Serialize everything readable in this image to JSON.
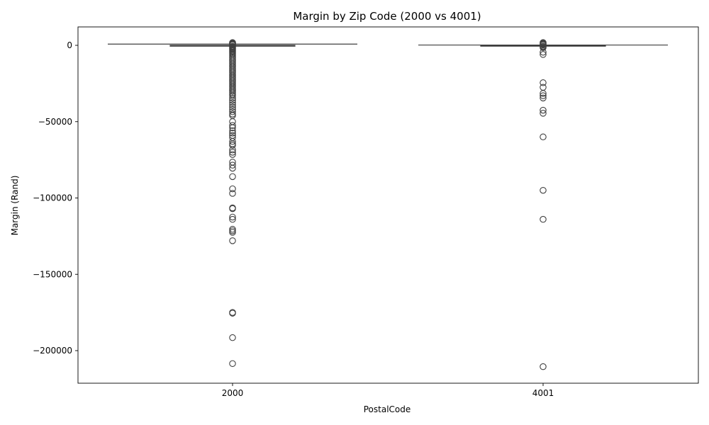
{
  "chart_data": {
    "type": "box",
    "title": "Margin by Zip Code (2000 vs 4001)",
    "xlabel": "PostalCode",
    "ylabel": "Margin (Rand)",
    "categories": [
      "2000",
      "4001"
    ],
    "ylim": [
      -220000,
      12000
    ],
    "yticks": [
      0,
      -50000,
      -100000,
      -150000,
      -200000
    ],
    "ytick_labels": [
      "0",
      "−50000",
      "−100000",
      "−150000",
      "−200000"
    ],
    "grid": false,
    "boxes": [
      {
        "category": "2000",
        "q1": -500,
        "median": -200,
        "q3": 0,
        "whisker_low": -900,
        "whisker_high": 800,
        "outliers": [
          1800,
          1500,
          1200,
          900,
          600,
          300,
          -600,
          -1000,
          -1500,
          -2000,
          -2600,
          -3200,
          -3800,
          -4500,
          -5200,
          -6000,
          -7000,
          -8000,
          -9000,
          -10000,
          -11000,
          -12000,
          -13000,
          -14000,
          -15000,
          -16000,
          -17000,
          -18000,
          -19000,
          -20000,
          -21000,
          -22000,
          -23000,
          -24000,
          -25000,
          -26000,
          -27000,
          -28000,
          -29000,
          -30000,
          -31000,
          -32000,
          -33000,
          -34500,
          -36000,
          -37500,
          -39000,
          -40500,
          -42000,
          -43500,
          -45000,
          -46000,
          -50000,
          -52500,
          -54000,
          -56000,
          -57500,
          -59000,
          -60500,
          -63000,
          -64500,
          -65500,
          -68500,
          -70000,
          -71500,
          -76500,
          -78500,
          -80500,
          -86000,
          -94000,
          -97000,
          -106500,
          -107000,
          -112500,
          -114000,
          -120500,
          -121500,
          -122500,
          -128000,
          -175000,
          -175500,
          -191500,
          -208500
        ]
      },
      {
        "category": "4001",
        "q1": 0,
        "median": 0,
        "q3": 0,
        "whisker_low": -200,
        "whisker_high": 200,
        "outliers": [
          1800,
          1400,
          1000,
          600,
          300,
          -500,
          -1000,
          -1500,
          -4500,
          -6000,
          -24500,
          -27500,
          -31500,
          -33000,
          -34500,
          -42500,
          -44500,
          -60000,
          -95000,
          -114000,
          -210500
        ]
      }
    ]
  }
}
